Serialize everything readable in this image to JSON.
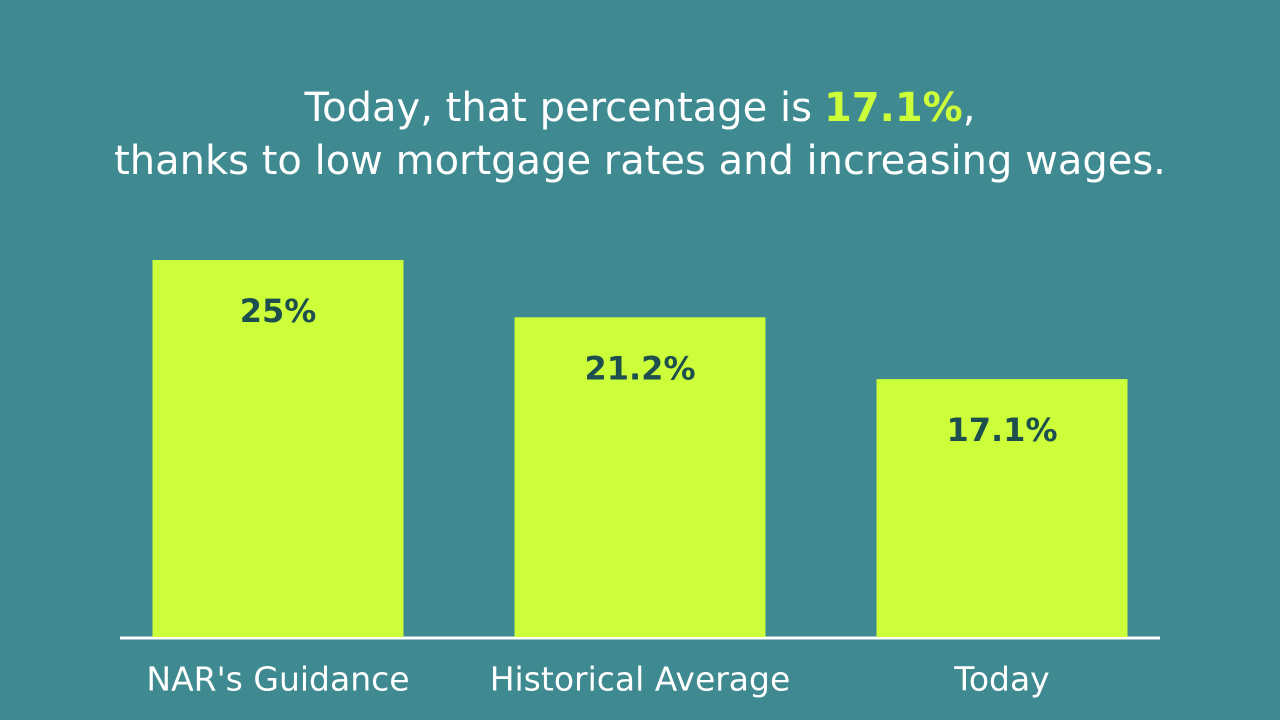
{
  "chart_data": {
    "type": "bar",
    "title": {
      "lead": "Today, that percentage is",
      "highlight": "17.1%",
      "tail": ","
    },
    "subtitle": "thanks to low mortgage rates and increasing wages.",
    "categories": [
      "NAR's Guidance",
      "Historical Average",
      "Today"
    ],
    "values": [
      25,
      21.2,
      17.1
    ],
    "value_labels": [
      "25%",
      "21.2%",
      "17.1%"
    ],
    "color": "#ccff3a",
    "highlight_color": "#ccff3a",
    "label_color": "#1e4f4f",
    "background": "#3e8a90"
  }
}
